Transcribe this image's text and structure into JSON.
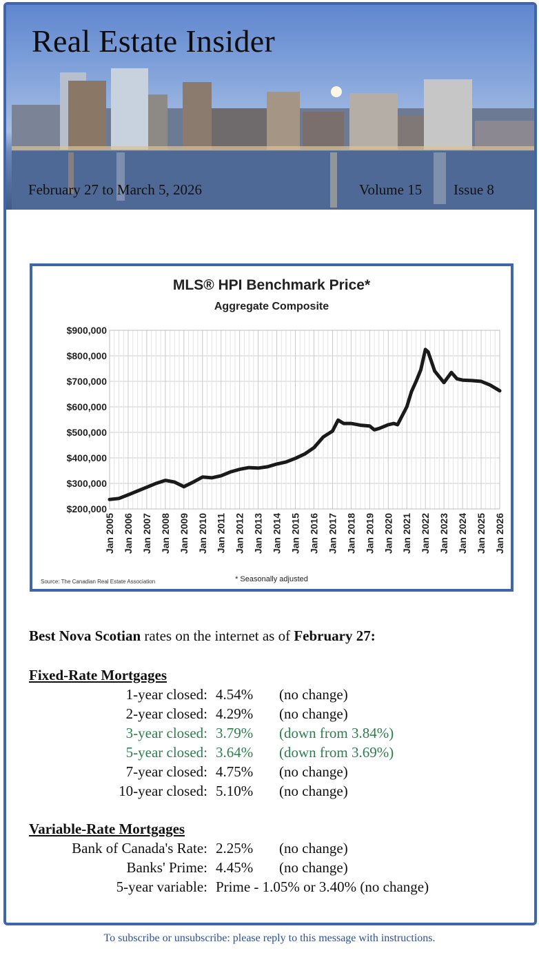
{
  "header": {
    "title": "Real Estate Insider",
    "date_range": "February 27 to March 5, 2026",
    "volume": "Volume 15",
    "issue": "Issue 8"
  },
  "chart_data": {
    "type": "line",
    "title": "MLS® HPI Benchmark Price*",
    "subtitle": "Aggregate Composite",
    "source": "Source: The Canadian Real Estate Association",
    "footnote": "* Seasonally adjusted",
    "ylim": [
      200000,
      900000
    ],
    "y_ticks": [
      "$900,000",
      "$800,000",
      "$700,000",
      "$600,000",
      "$500,000",
      "$400,000",
      "$300,000",
      "$200,000"
    ],
    "x_ticks": [
      "Jan 2005",
      "Jan 2006",
      "Jan 2007",
      "Jan 2008",
      "Jan 2009",
      "Jan 2010",
      "Jan 2011",
      "Jan 2012",
      "Jan 2013",
      "Jan 2014",
      "Jan 2015",
      "Jan 2016",
      "Jan 2017",
      "Jan 2018",
      "Jan 2019",
      "Jan 2020",
      "Jan 2021",
      "Jan 2022",
      "Jan 2023",
      "Jan 2024",
      "Jan 2025",
      "Jan 2026"
    ],
    "grid": true,
    "series": [
      {
        "x": [
          2005.0,
          2005.5,
          2006.0,
          2006.5,
          2007.0,
          2007.5,
          2008.0,
          2008.5,
          2009.0,
          2009.5,
          2010.0,
          2010.5,
          2011.0,
          2011.5,
          2012.0,
          2012.5,
          2013.0,
          2013.5,
          2014.0,
          2014.5,
          2015.0,
          2015.5,
          2016.0,
          2016.5,
          2017.0,
          2017.3,
          2017.6,
          2018.0,
          2018.5,
          2019.0,
          2019.25,
          2019.5,
          2020.0,
          2020.3,
          2020.5,
          2020.75,
          2021.0,
          2021.25,
          2021.5,
          2021.75,
          2022.0,
          2022.15,
          2022.5,
          2023.0,
          2023.4,
          2023.7,
          2024.0,
          2024.5,
          2025.0,
          2025.5,
          2026.0
        ],
        "y": [
          237000,
          241000,
          255000,
          270000,
          285000,
          300000,
          312000,
          305000,
          287000,
          305000,
          325000,
          322000,
          330000,
          345000,
          355000,
          362000,
          360000,
          365000,
          376000,
          384000,
          398000,
          415000,
          440000,
          482000,
          505000,
          548000,
          535000,
          535000,
          528000,
          525000,
          510000,
          515000,
          530000,
          535000,
          530000,
          565000,
          600000,
          660000,
          700000,
          745000,
          825000,
          815000,
          740000,
          695000,
          735000,
          710000,
          705000,
          703000,
          700000,
          685000,
          663000
        ]
      }
    ]
  },
  "rates": {
    "intro_bold1": "Best Nova Scotian",
    "intro_mid": " rates on the internet as of ",
    "intro_bold2": "February 27:",
    "fixed_heading": "Fixed-Rate Mortgages",
    "fixed": [
      {
        "label": "1-year closed:",
        "value": "4.54%",
        "change": "(no change)",
        "highlight": false
      },
      {
        "label": "2-year closed:",
        "value": "4.29%",
        "change": "(no change)",
        "highlight": false
      },
      {
        "label": "3-year closed:",
        "value": "3.79%",
        "change": "(down from 3.84%)",
        "highlight": true
      },
      {
        "label": "5-year closed:",
        "value": "3.64%",
        "change": "(down from 3.69%)",
        "highlight": true
      },
      {
        "label": "7-year closed:",
        "value": "4.75%",
        "change": "(no change)",
        "highlight": false
      },
      {
        "label": "10-year closed:",
        "value": "5.10%",
        "change": "(no change)",
        "highlight": false
      }
    ],
    "variable_heading": "Variable-Rate Mortgages",
    "variable": [
      {
        "label": "Bank of Canada's Rate:",
        "value": "2.25%",
        "change": "(no change)"
      },
      {
        "label": "Banks' Prime:",
        "value": "4.45%",
        "change": "(no change)"
      },
      {
        "label": "5-year variable:",
        "value": "Prime - 1.05% or 3.40% (no change)",
        "change": ""
      }
    ]
  },
  "footer": {
    "text": "To subscribe or unsubscribe: please reply to this message with instructions."
  },
  "colors": {
    "frame": "#3f66ad",
    "highlight": "#2e7d4f",
    "footer": "#2d4f9a"
  }
}
